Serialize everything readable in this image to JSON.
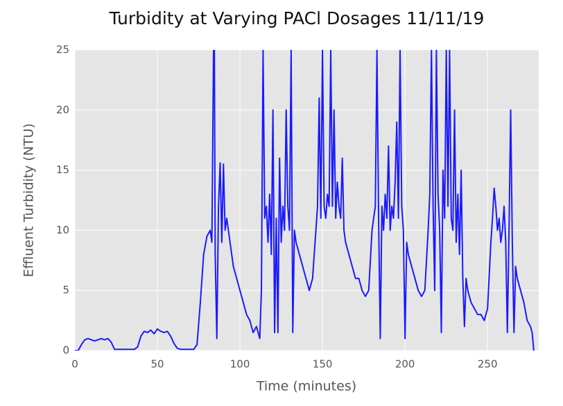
{
  "chart_data": {
    "type": "line",
    "title": "Turbidity at Varying PACl Dosages 11/11/19",
    "x_label": "Time (minutes)",
    "y_label": "Effluent Turbidity (NTU)",
    "xlim": [
      0,
      281
    ],
    "ylim": [
      0,
      25
    ],
    "xticks": [
      0,
      50,
      100,
      150,
      200,
      250
    ],
    "yticks": [
      0,
      5,
      10,
      15,
      20,
      25
    ],
    "grid": true,
    "series": [
      {
        "color": "#1a1aff",
        "x": [
          0,
          2,
          4,
          6,
          8,
          10,
          12,
          14,
          16,
          18,
          20,
          22,
          24,
          26,
          28,
          30,
          32,
          34,
          36,
          38,
          40,
          42,
          44,
          46,
          48,
          50,
          52,
          54,
          56,
          58,
          60,
          62,
          64,
          66,
          68,
          70,
          72,
          74,
          76,
          78,
          80,
          82,
          83,
          84,
          84.5,
          85,
          86,
          87,
          88,
          89,
          90,
          91,
          92,
          94,
          96,
          98,
          100,
          102,
          104,
          106,
          108,
          110,
          112,
          113,
          114,
          115,
          116,
          117,
          118,
          119,
          120,
          121,
          122,
          123,
          124,
          125,
          126,
          127,
          128,
          129,
          130,
          131,
          132,
          133,
          134,
          136,
          138,
          140,
          142,
          144,
          146,
          147,
          148,
          149,
          150,
          151,
          152,
          153,
          154,
          155,
          156,
          157,
          158,
          159,
          160,
          161,
          162,
          163,
          164,
          166,
          168,
          170,
          172,
          174,
          176,
          178,
          180,
          181,
          182,
          183,
          184,
          185,
          186,
          187,
          188,
          189,
          190,
          191,
          192,
          193,
          194,
          195,
          196,
          197,
          198,
          199,
          200,
          201,
          202,
          204,
          206,
          208,
          210,
          212,
          214,
          215,
          216,
          217,
          218,
          219,
          220,
          221,
          222,
          223,
          224,
          225,
          226,
          227,
          228,
          229,
          230,
          231,
          232,
          233,
          234,
          235,
          236,
          237,
          238,
          240,
          242,
          244,
          246,
          248,
          250,
          252,
          253,
          254,
          255,
          256,
          257,
          258,
          259,
          260,
          261,
          262,
          263,
          264,
          265,
          266,
          267,
          268,
          270,
          272,
          274,
          276,
          277,
          278
        ],
        "values": [
          0,
          0,
          0.5,
          0.9,
          1.0,
          0.9,
          0.8,
          0.9,
          1.0,
          0.9,
          1.0,
          0.7,
          0.1,
          0.1,
          0.1,
          0.1,
          0.1,
          0.1,
          0.1,
          0.3,
          1.2,
          1.6,
          1.5,
          1.7,
          1.4,
          1.8,
          1.6,
          1.5,
          1.6,
          1.2,
          0.6,
          0.2,
          0.1,
          0.1,
          0.1,
          0.1,
          0.1,
          0.5,
          4,
          8,
          9.5,
          10,
          9,
          25,
          25,
          8,
          1,
          12,
          15.6,
          9,
          15.5,
          10,
          11,
          9,
          7,
          6,
          5,
          4,
          3,
          2.5,
          1.5,
          2,
          1,
          5,
          25,
          11,
          12,
          9,
          13,
          8,
          20,
          1.5,
          11,
          1.5,
          16,
          9,
          12,
          10,
          20,
          12,
          10,
          25,
          1.5,
          10,
          9,
          8,
          7,
          6,
          5,
          6,
          10,
          12,
          21,
          11,
          25,
          12,
          11,
          13,
          12,
          25,
          12,
          20,
          11,
          14,
          12,
          11,
          16,
          10,
          9,
          8,
          7,
          6,
          6,
          5,
          4.5,
          5,
          10,
          11,
          12,
          25,
          11,
          1,
          12,
          10,
          13,
          11,
          17,
          10,
          12,
          11,
          14,
          19,
          11,
          25,
          12,
          10,
          1,
          9,
          8,
          7,
          6,
          5,
          4.5,
          5,
          10,
          13,
          25,
          12,
          5,
          25,
          13,
          10,
          1.5,
          15,
          11,
          25,
          12,
          25,
          11,
          10,
          20,
          9,
          13,
          8,
          15,
          6,
          2,
          6,
          5,
          4,
          3.5,
          3,
          3,
          2.5,
          3.5,
          9,
          11,
          13.5,
          12,
          10,
          11,
          9,
          10,
          12,
          9,
          1.5,
          10,
          20,
          9,
          1.5,
          7,
          6,
          5,
          4,
          2.5,
          2,
          1.5,
          0
        ]
      }
    ]
  }
}
